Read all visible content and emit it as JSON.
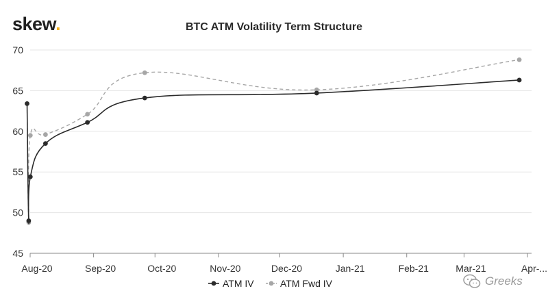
{
  "brand": {
    "name": "skew",
    "dot": "."
  },
  "watermark": {
    "text": "Greeks",
    "icon": "wechat-icon"
  },
  "colors": {
    "atm_iv": "#2b2b2b",
    "atm_fwd_iv": "#a6a6a6",
    "grid": "#e6e6e6",
    "axis": "#888888",
    "brand_dot": "#f2b01e"
  },
  "chart_data": {
    "type": "line",
    "title": "BTC ATM Volatility Term Structure",
    "xlabel": "",
    "ylabel": "",
    "ylim": [
      45,
      70
    ],
    "yticks": [
      45,
      50,
      55,
      60,
      65,
      70
    ],
    "x_range_days": [
      0,
      245
    ],
    "x_ticks": [
      {
        "label": "Aug-20",
        "day": 0
      },
      {
        "label": "Sep-20",
        "day": 31
      },
      {
        "label": "Oct-20",
        "day": 61
      },
      {
        "label": "Nov-20",
        "day": 92
      },
      {
        "label": "Dec-20",
        "day": 122
      },
      {
        "label": "Jan-21",
        "day": 153
      },
      {
        "label": "Feb-21",
        "day": 184
      },
      {
        "label": "Mar-21",
        "day": 212
      },
      {
        "label": "Apr-...",
        "day": 243
      }
    ],
    "legend_position": "bottom-center",
    "series": [
      {
        "name": "ATM IV",
        "style": "solid",
        "points": [
          {
            "day": -1.5,
            "value": 63.4
          },
          {
            "day": -0.7,
            "value": 49.0
          },
          {
            "day": 0.1,
            "value": 54.4
          },
          {
            "day": 7.5,
            "value": 58.5
          },
          {
            "day": 28,
            "value": 61.1
          },
          {
            "day": 56,
            "value": 64.1
          },
          {
            "day": 140,
            "value": 64.7
          },
          {
            "day": 239,
            "value": 66.3
          }
        ]
      },
      {
        "name": "ATM Fwd IV",
        "style": "dashed",
        "points": [
          {
            "day": -1.5,
            "value": 63.4
          },
          {
            "day": -0.7,
            "value": 48.8
          },
          {
            "day": 0.1,
            "value": 59.5
          },
          {
            "day": 7.5,
            "value": 59.6
          },
          {
            "day": 28,
            "value": 62.1
          },
          {
            "day": 56,
            "value": 67.2
          },
          {
            "day": 140,
            "value": 65.1
          },
          {
            "day": 239,
            "value": 68.8
          }
        ]
      }
    ]
  }
}
